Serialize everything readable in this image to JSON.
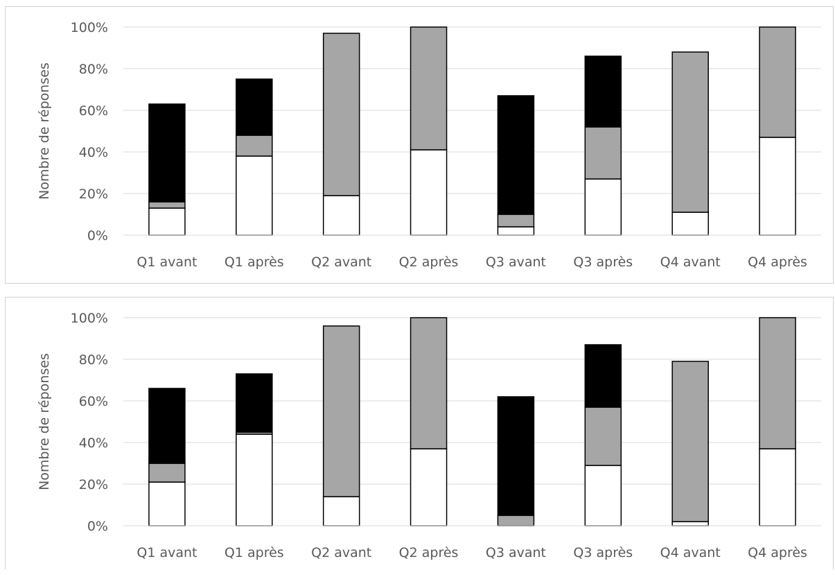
{
  "chart_data": [
    {
      "type": "bar",
      "stacked": true,
      "title": "",
      "xlabel": "",
      "ylabel": "Nombre de réponses",
      "ylim": [
        0,
        100
      ],
      "yticks": [
        "0%",
        "20%",
        "40%",
        "60%",
        "80%",
        "100%"
      ],
      "grid": true,
      "legend": "none",
      "categories": [
        "Q1 avant",
        "Q1 après",
        "Q2 avant",
        "Q2 après",
        "Q3 avant",
        "Q3 après",
        "Q4 avant",
        "Q4 après"
      ],
      "series": [
        {
          "color": "#ffffff",
          "values": [
            13,
            38,
            19,
            41,
            4,
            27,
            11,
            47
          ]
        },
        {
          "color": "#a6a6a6",
          "values": [
            3,
            10,
            78,
            59,
            6,
            25,
            77,
            53
          ]
        },
        {
          "color": "#000000",
          "values": [
            47,
            27,
            0,
            0,
            57,
            34,
            0,
            0
          ]
        }
      ]
    },
    {
      "type": "bar",
      "stacked": true,
      "title": "",
      "xlabel": "",
      "ylabel": "Nombre de réponses",
      "ylim": [
        0,
        100
      ],
      "yticks": [
        "0%",
        "20%",
        "40%",
        "60%",
        "80%",
        "100%"
      ],
      "grid": true,
      "legend": "none",
      "categories": [
        "Q1 avant",
        "Q1 après",
        "Q2 avant",
        "Q2 après",
        "Q3 avant",
        "Q3 après",
        "Q4 avant",
        "Q4 après"
      ],
      "series": [
        {
          "color": "#ffffff",
          "values": [
            21,
            44,
            14,
            37,
            0,
            29,
            2,
            37
          ]
        },
        {
          "color": "#a6a6a6",
          "values": [
            9,
            1,
            82,
            63,
            5,
            28,
            77,
            63
          ]
        },
        {
          "color": "#000000",
          "values": [
            36,
            28,
            0,
            0,
            57,
            30,
            0,
            0
          ]
        }
      ]
    }
  ]
}
